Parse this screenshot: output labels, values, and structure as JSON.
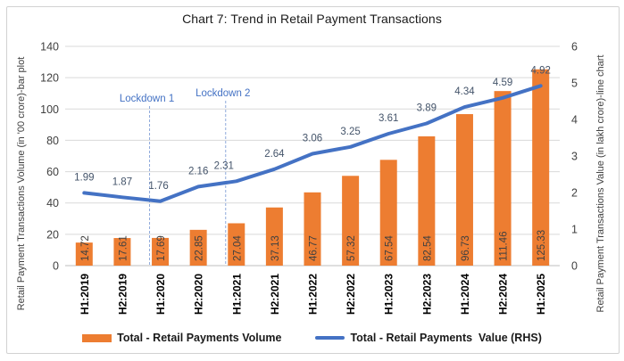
{
  "chart": {
    "title": "Chart 7: Trend in Retail Payment Transactions",
    "left_axis_title": "Retail Payment Transactions Volume (in '00 crore)-bar plot",
    "right_axis_title": "Retail Payment Transactions Value (in lakh crore)-line chart"
  },
  "legend": {
    "items": [
      {
        "label": "Total - Retail Payments Volume",
        "marker": "bar",
        "color": "#ED7D31"
      },
      {
        "label": "Total - Retail Payments  Value (RHS)",
        "marker": "line",
        "color": "#4472C4"
      }
    ]
  },
  "colors": {
    "bar": "#ED7D31",
    "line": "#4472C4",
    "bar_label": "#404040",
    "line_label": "#44546A",
    "annotation": "#4472C4",
    "annotation_line": "#8EA9DB",
    "gridline": "#D9D9D9",
    "axis_line": "#BFBFBF",
    "tick_label": "#404040",
    "category_label": "#000000"
  },
  "chart_data": {
    "type": "combo",
    "title": "Chart 7: Trend in Retail Payment Transactions",
    "categories": [
      "H1:2019",
      "H2:2019",
      "H1:2020",
      "H2:2020",
      "H1:2021",
      "H2:2021",
      "H1:2022",
      "H2:2022",
      "H1:2023",
      "H2:2023",
      "H1:2024",
      "H2:2024",
      "H1:2025"
    ],
    "series": [
      {
        "name": "Total - Retail Payments Volume",
        "type": "bar",
        "axis": "left",
        "color": "#ED7D31",
        "values": [
          14.72,
          17.61,
          17.69,
          22.85,
          27.04,
          37.13,
          46.77,
          57.32,
          67.54,
          82.54,
          96.73,
          111.46,
          125.33
        ]
      },
      {
        "name": "Total - Retail Payments  Value (RHS)",
        "type": "line",
        "axis": "right",
        "color": "#4472C4",
        "values": [
          1.99,
          1.87,
          1.76,
          2.16,
          2.31,
          2.64,
          3.06,
          3.25,
          3.61,
          3.89,
          4.34,
          4.59,
          4.92
        ],
        "label_dx": [
          0,
          0,
          -2,
          0,
          -14,
          0,
          0,
          0,
          0,
          0,
          0,
          0,
          0
        ]
      }
    ],
    "left_axis": {
      "label": "Retail Payment Transactions Volume (in '00 crore)-bar plot",
      "min": 0,
      "max": 140,
      "step": 20
    },
    "right_axis": {
      "label": "Retail Payment Transactions Value (in lakh crore)-line chart",
      "min": 0,
      "max": 6,
      "step": 1
    },
    "annotations": [
      {
        "label": "Lockdown 1",
        "category_index": 2
      },
      {
        "label": "Lockdown 2",
        "category_index": 4
      }
    ],
    "grid": true,
    "legend_position": "bottom"
  }
}
